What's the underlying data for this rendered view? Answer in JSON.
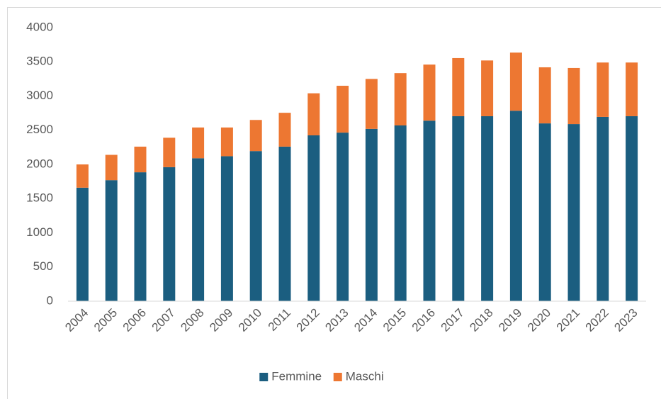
{
  "chart_data": {
    "type": "stacked_bar",
    "categories": [
      "2004",
      "2005",
      "2006",
      "2007",
      "2008",
      "2009",
      "2010",
      "2011",
      "2012",
      "2013",
      "2014",
      "2015",
      "2016",
      "2017",
      "2018",
      "2019",
      "2020",
      "2021",
      "2022",
      "2023"
    ],
    "series": [
      {
        "name": "Femmine",
        "color": "#1b5e80",
        "values": [
          1660,
          1770,
          1885,
          1960,
          2090,
          2120,
          2195,
          2260,
          2425,
          2465,
          2520,
          2570,
          2640,
          2705,
          2705,
          2785,
          2600,
          2590,
          2695,
          2705
        ]
      },
      {
        "name": "Maschi",
        "color": "#ed7732",
        "values": [
          340,
          370,
          375,
          430,
          450,
          420,
          455,
          495,
          615,
          685,
          730,
          765,
          820,
          850,
          815,
          850,
          820,
          820,
          795,
          785
        ]
      }
    ],
    "ylim": [
      0,
      4000
    ],
    "yticks": [
      0,
      500,
      1000,
      1500,
      2000,
      2500,
      3000,
      3500,
      4000
    ],
    "grid": false,
    "legend": "bottom"
  }
}
